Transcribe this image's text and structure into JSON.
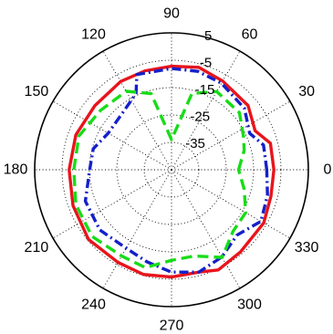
{
  "chart_data": {
    "type": "polar-line",
    "theta_unit": "degrees",
    "r_range": [
      -45,
      5
    ],
    "angular_ticks": [
      "0",
      "30",
      "60",
      "90",
      "120",
      "150",
      "180",
      "210",
      "240",
      "270",
      "300",
      "330"
    ],
    "radial_ticks": [
      "-35",
      "-25",
      "-15",
      "-5",
      "5"
    ],
    "grid": true,
    "series": [
      {
        "color": "#e8141c",
        "dash": "solid",
        "points": [
          [
            0,
            -7.6
          ],
          [
            15,
            -7.6
          ],
          [
            25,
            -11.3
          ],
          [
            40,
            -8.5
          ],
          [
            60,
            -7.6
          ],
          [
            75,
            -6.3
          ],
          [
            90,
            -7.2
          ],
          [
            105,
            -7.6
          ],
          [
            120,
            -7.8
          ],
          [
            140,
            -8.5
          ],
          [
            160,
            -7.8
          ],
          [
            180,
            -7.6
          ],
          [
            200,
            -6.7
          ],
          [
            220,
            -5.4
          ],
          [
            240,
            -5.9
          ],
          [
            255,
            -5.4
          ],
          [
            270,
            -5.8
          ],
          [
            285,
            -6.3
          ],
          [
            295,
            -4.6
          ],
          [
            310,
            -5.8
          ],
          [
            330,
            -6.1
          ],
          [
            345,
            -7.4
          ],
          [
            360,
            -7.6
          ]
        ]
      },
      {
        "color": "#1420c8",
        "dash": "dashdot",
        "points": [
          [
            0,
            -10.2
          ],
          [
            15,
            -10.2
          ],
          [
            25,
            -13.5
          ],
          [
            40,
            -10.2
          ],
          [
            60,
            -8.5
          ],
          [
            75,
            -7.8
          ],
          [
            90,
            -8.0
          ],
          [
            110,
            -8.0
          ],
          [
            115,
            -14.3
          ],
          [
            130,
            -17.5
          ],
          [
            150,
            -18.3
          ],
          [
            165,
            -15.4
          ],
          [
            180,
            -15.1
          ],
          [
            200,
            -11.5
          ],
          [
            220,
            -10.8
          ],
          [
            240,
            -11.9
          ],
          [
            255,
            -10.2
          ],
          [
            270,
            -7.6
          ],
          [
            285,
            -6.3
          ],
          [
            300,
            -8.2
          ],
          [
            315,
            -11.2
          ],
          [
            330,
            -7.3
          ],
          [
            345,
            -8.7
          ],
          [
            360,
            -10.2
          ]
        ]
      },
      {
        "color": "#18dc18",
        "dash": "dashed",
        "points": [
          [
            0,
            -20.5
          ],
          [
            15,
            -17.5
          ],
          [
            25,
            -16.0
          ],
          [
            40,
            -12.6
          ],
          [
            60,
            -12.0
          ],
          [
            75,
            -16.2
          ],
          [
            90,
            -34.0
          ],
          [
            105,
            -16.2
          ],
          [
            120,
            -11.9
          ],
          [
            140,
            -11.2
          ],
          [
            160,
            -9.0
          ],
          [
            180,
            -9.3
          ],
          [
            200,
            -7.8
          ],
          [
            220,
            -7.1
          ],
          [
            240,
            -8.6
          ],
          [
            255,
            -8.0
          ],
          [
            270,
            -11.9
          ],
          [
            285,
            -12.4
          ],
          [
            300,
            -8.0
          ],
          [
            315,
            -13.2
          ],
          [
            330,
            -13.7
          ],
          [
            345,
            -17.5
          ],
          [
            360,
            -20.5
          ]
        ]
      }
    ]
  }
}
